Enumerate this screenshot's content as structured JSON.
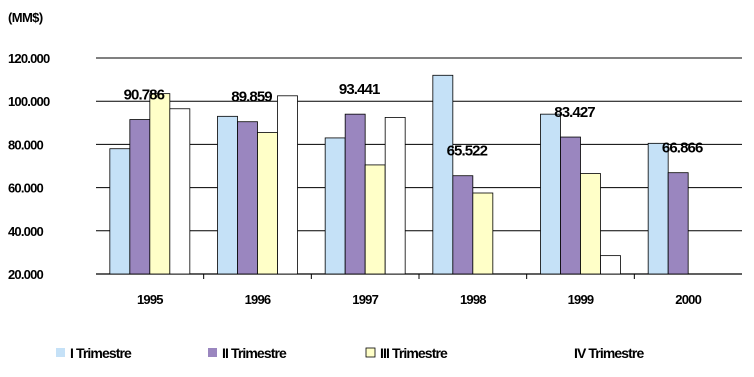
{
  "chart_data": {
    "type": "bar",
    "unit_label": "(MM$)",
    "categories": [
      "1995",
      "1996",
      "1997",
      "1998",
      "1999",
      "2000"
    ],
    "series": [
      {
        "name": "I Trimestre",
        "color": "#c5e1f7",
        "values": [
          78000,
          93000,
          83000,
          112000,
          94000,
          80500
        ]
      },
      {
        "name": "II Trimestre",
        "color": "#9a86bf",
        "values": [
          91500,
          90500,
          94000,
          65500,
          83400,
          66900
        ]
      },
      {
        "name": "III Trimestre",
        "color": "#ffffc8",
        "values": [
          103500,
          85500,
          70500,
          57500,
          66500,
          null
        ]
      },
      {
        "name": "IV Trimestre",
        "color": "#ffffff",
        "values": [
          96500,
          102500,
          92500,
          null,
          28500,
          null
        ]
      }
    ],
    "data_labels": [
      {
        "category": "1995",
        "series": "II Trimestre",
        "text": "90.786"
      },
      {
        "category": "1996",
        "series": "II Trimestre",
        "text": "89.859"
      },
      {
        "category": "1997",
        "series": "II Trimestre",
        "text": "93.441"
      },
      {
        "category": "1998",
        "series": "II Trimestre",
        "text": "65.522"
      },
      {
        "category": "1999",
        "series": "II Trimestre",
        "text": "83.427"
      },
      {
        "category": "2000",
        "series": "II Trimestre",
        "text": "66.866"
      }
    ],
    "yticks": [
      {
        "value": 20000,
        "label": "20.000"
      },
      {
        "value": 40000,
        "label": "40.000"
      },
      {
        "value": 60000,
        "label": "60.000"
      },
      {
        "value": 80000,
        "label": "80.000"
      },
      {
        "value": 100000,
        "label": "100.000"
      },
      {
        "value": 120000,
        "label": "120.000"
      }
    ],
    "ylim": [
      20000,
      120000
    ],
    "grid": true,
    "legend_position": "bottom",
    "colors": {
      "bar_stroke": "#000000",
      "grid": "#000000",
      "axis": "#000000"
    }
  }
}
